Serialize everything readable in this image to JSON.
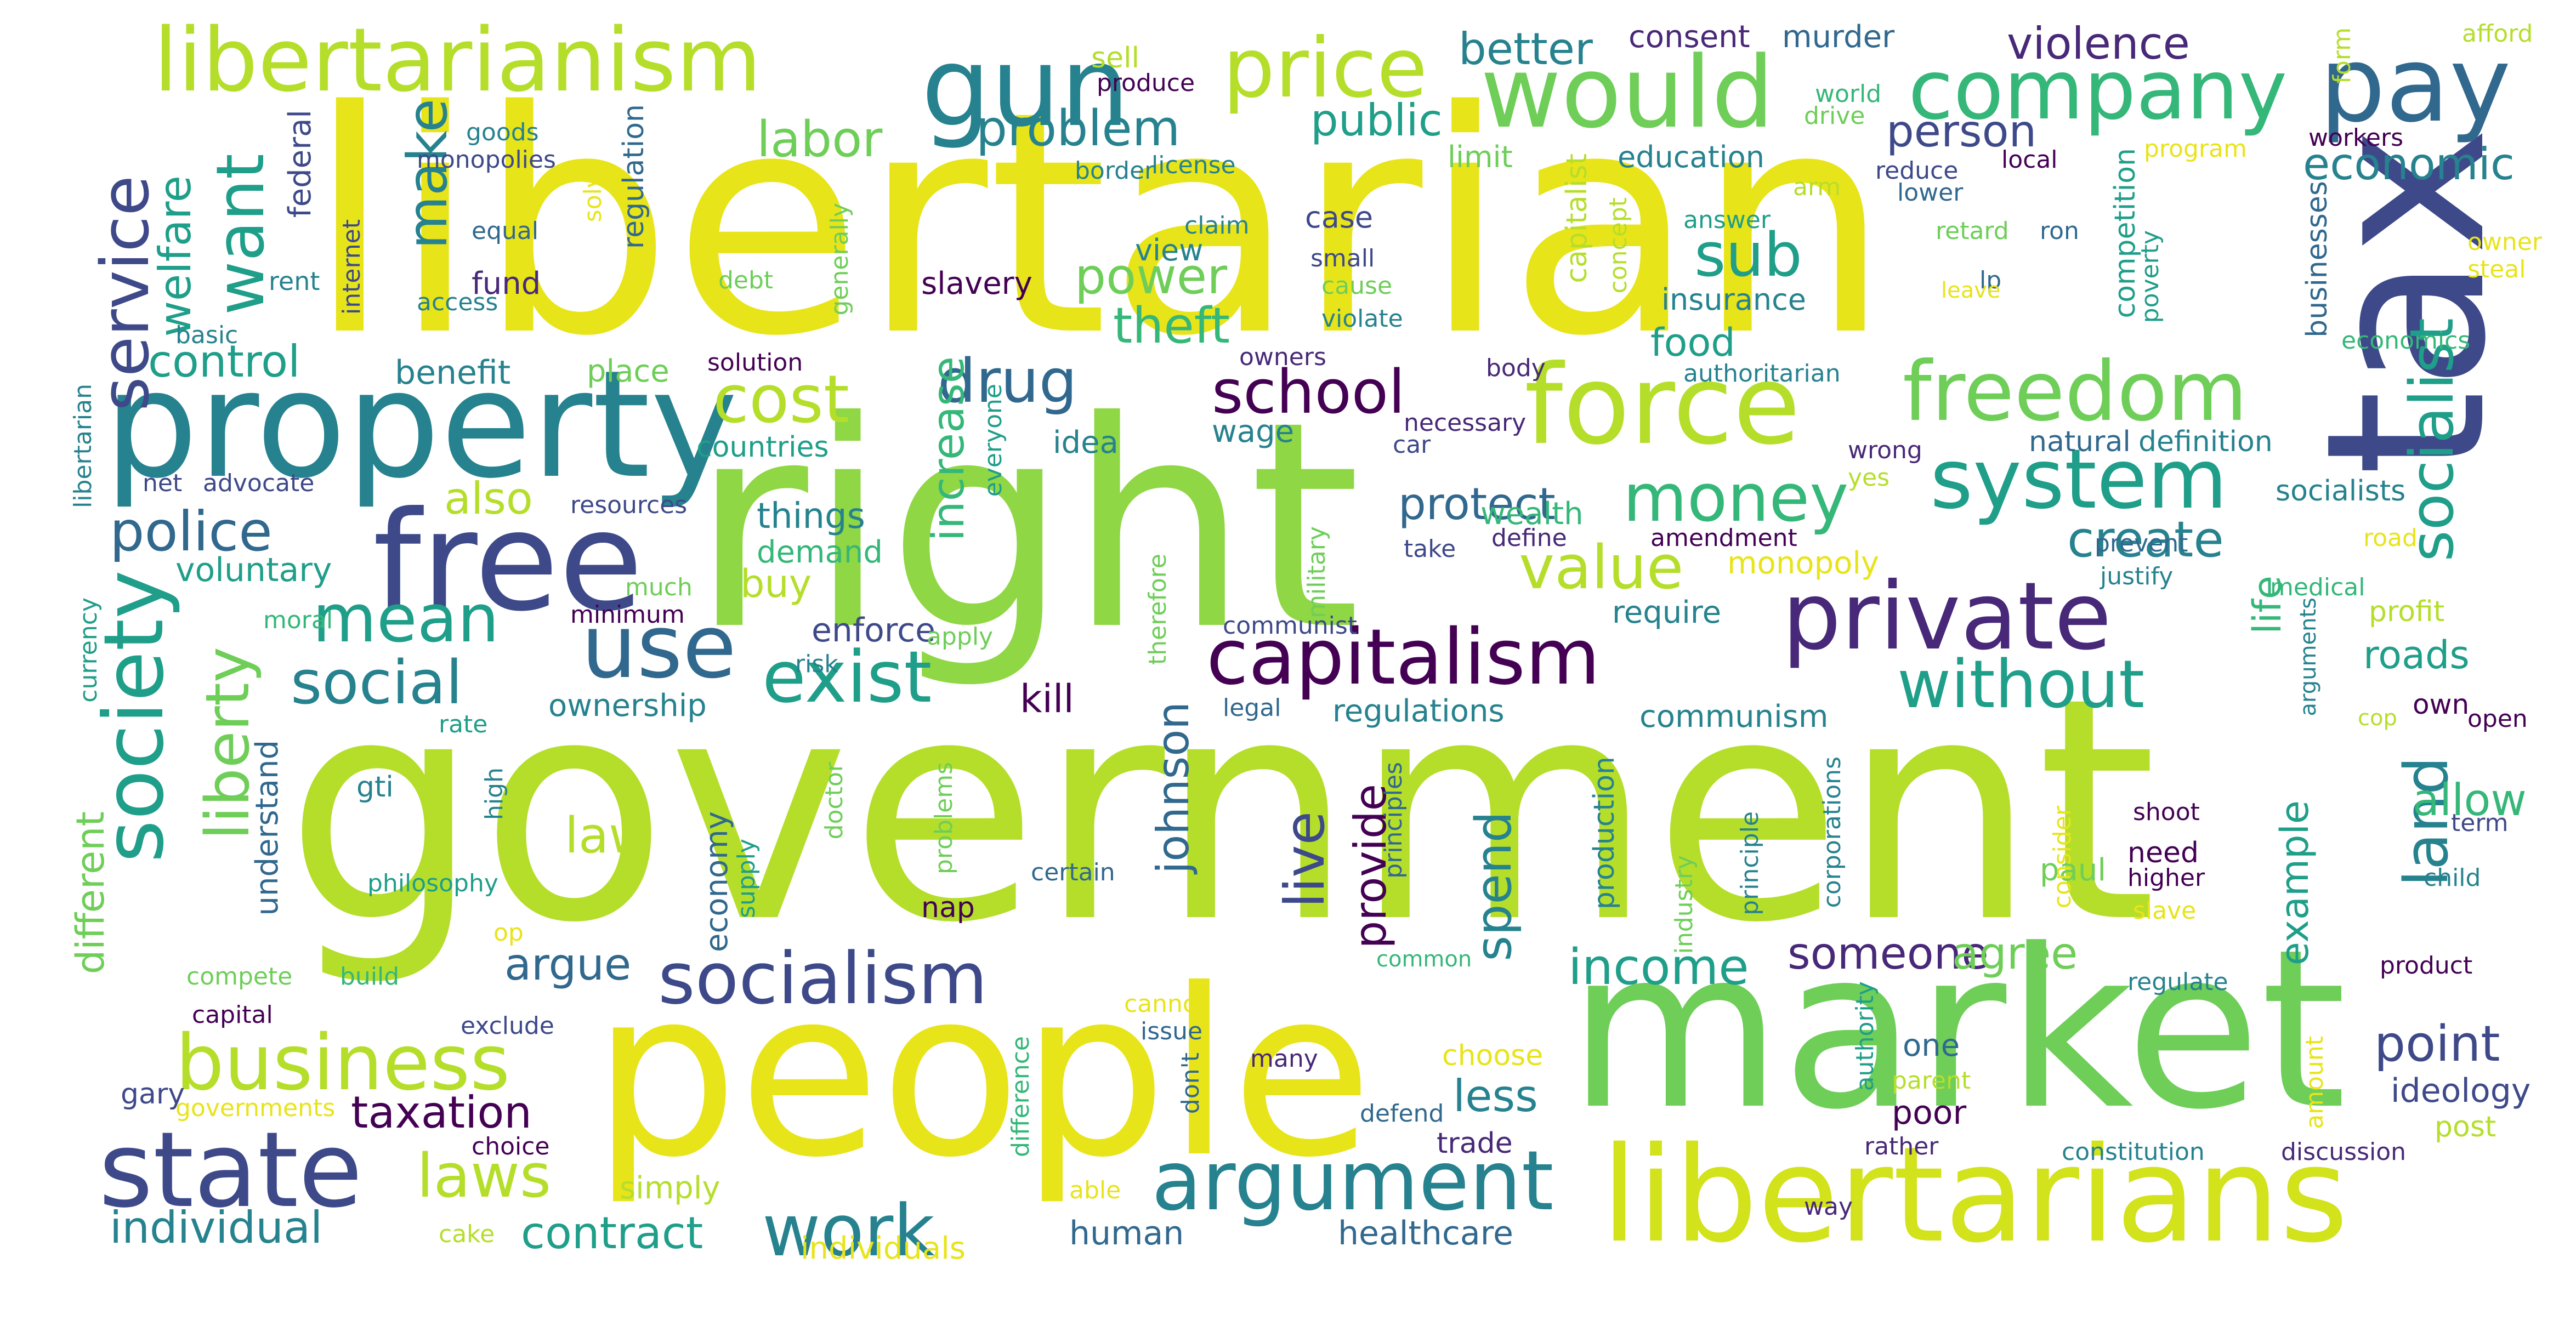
{
  "words": [
    "government",
    "right",
    "libertarian",
    "tax",
    "people",
    "market",
    "libertarians",
    "property",
    "free",
    "state",
    "libertarianism",
    "gun",
    "price",
    "would",
    "company",
    "pay",
    "force",
    "freedom",
    "system",
    "private",
    "capitalism",
    "use",
    "socialism",
    "argument",
    "business",
    "work",
    "laws",
    "society",
    "liberty",
    "service",
    "want",
    "make",
    "police",
    "mean",
    "social",
    "exist",
    "cost",
    "drug",
    "school",
    "money",
    "sub",
    "value",
    "without",
    "socialist",
    "land",
    "power",
    "theft",
    "problem",
    "labor",
    "public",
    "better",
    "violence",
    "person",
    "economic",
    "welfare",
    "control",
    "benefit",
    "also",
    "voluntary",
    "create",
    "protect",
    "increase",
    "johnson",
    "live",
    "provide",
    "spend",
    "income",
    "someone",
    "agree",
    "argue",
    "law",
    "taxation",
    "individual",
    "contract",
    "human",
    "healthcare",
    "less",
    "point",
    "allow",
    "example",
    "life",
    "roads",
    "own",
    "kill",
    "enforce",
    "ownership",
    "regulations",
    "communism",
    "require",
    "wealth",
    "buy",
    "demand",
    "things",
    "idea",
    "wage",
    "countries",
    "food",
    "insurance",
    "education",
    "murder",
    "consent",
    "different",
    "understand",
    "federal",
    "fund",
    "rent",
    "internet",
    "regulation",
    "monopolies",
    "goods",
    "equal",
    "basic",
    "access",
    "libertarian",
    "net",
    "advocate",
    "resources",
    "currency",
    "moral",
    "minimum",
    "much",
    "place",
    "solution",
    "slavery",
    "debt",
    "generally",
    "claim",
    "view",
    "case",
    "small",
    "cause",
    "limit",
    "violate",
    "owners",
    "body",
    "necessary",
    "car",
    "authoritarian",
    "monopoly",
    "define",
    "take",
    "military",
    "therefore",
    "communist",
    "apply",
    "risk",
    "legal",
    "rate",
    "gti",
    "high",
    "philosophy",
    "op",
    "gary",
    "compete",
    "build",
    "capital",
    "exclude",
    "governments",
    "choice",
    "simply",
    "cake",
    "individuals",
    "able",
    "difference",
    "issue",
    "many",
    "cannot",
    "defend",
    "trade",
    "choose",
    "common",
    "doctor",
    "problems",
    "supply",
    "economy",
    "nap",
    "certain",
    "production",
    "paul",
    "need",
    "higher",
    "shoot",
    "child",
    "slave",
    "term",
    "open",
    "product",
    "regulate",
    "ideology",
    "post",
    "discussion",
    "constitution",
    "rather",
    "way",
    "parent",
    "poor",
    "one",
    "amount",
    "authority",
    "corporations",
    "principle",
    "industry",
    "principles",
    "consider",
    "capitalist",
    "concept",
    "competition",
    "businesses",
    "economics",
    "poverty",
    "lp",
    "ron",
    "retard",
    "lower",
    "answer",
    "reduce",
    "local",
    "program",
    "workers",
    "afford",
    "form",
    "drive",
    "world",
    "arm",
    "sell",
    "produce",
    "border",
    "license",
    "solve",
    "yes",
    "wrong",
    "natural",
    "definition",
    "socialists",
    "prevent",
    "amendment",
    "justify",
    "medical",
    "profit",
    "arguments",
    "cop",
    "owner",
    "steal",
    "leave",
    "road",
    "everyone",
    "don't",
    "lp"
  ],
  "palette": {
    "dark_purple": "#440154",
    "indigo": "#482878",
    "blue": "#3e4989",
    "steel_blue": "#31688e",
    "teal": "#26828e",
    "green_teal": "#1f9e89",
    "green": "#35b779",
    "light_green": "#6ece58",
    "lime": "#b5de2b",
    "yellow": "#e8e41a"
  }
}
